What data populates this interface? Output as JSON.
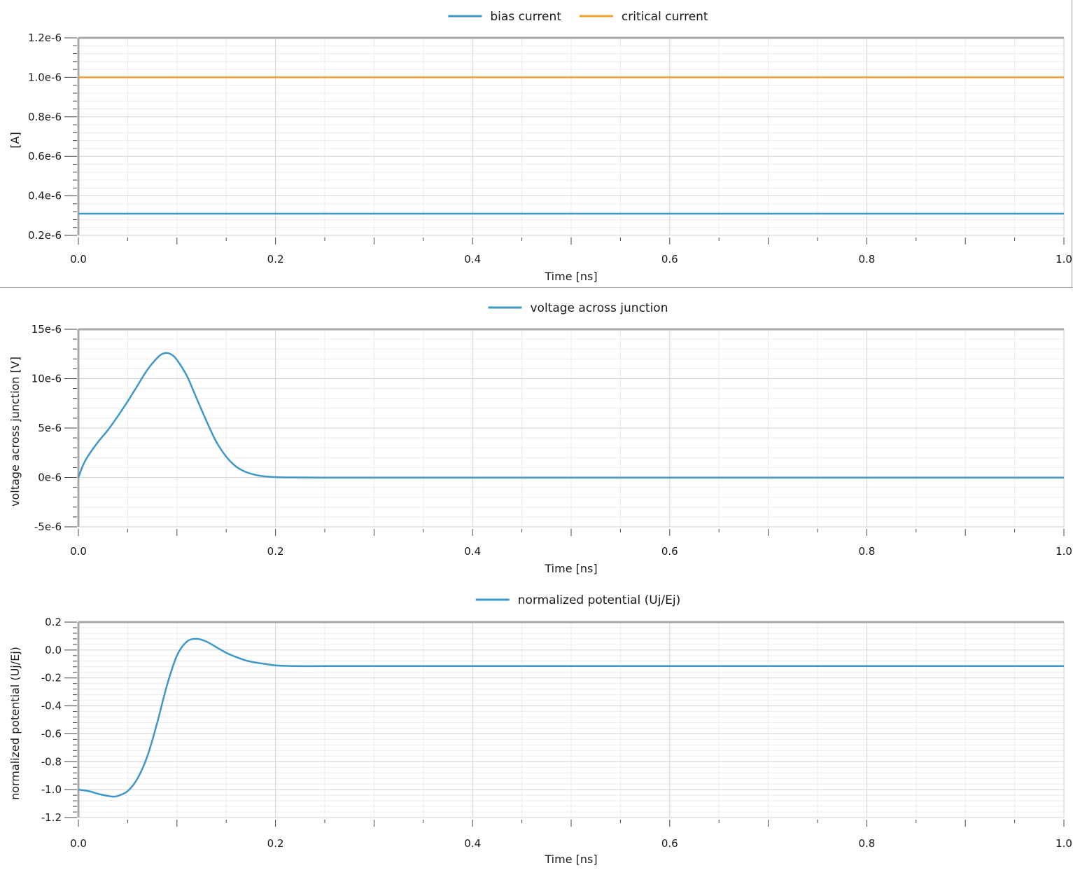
{
  "chart_data": [
    {
      "type": "line",
      "legend": "top-center",
      "xlabel": "Time [ns]",
      "ylabel": "[A]",
      "xlim": [
        0.0,
        1.0
      ],
      "ylim": [
        2e-07,
        1.2e-06
      ],
      "xticks": [
        "0.0",
        "0.2",
        "0.4",
        "0.6",
        "0.8",
        "1.0"
      ],
      "yticks": [
        "1.2e-6",
        "1.0e-6",
        "0.8e-6",
        "0.6e-6",
        "0.4e-6",
        "0.2e-6"
      ],
      "ytick_values": [
        1.2e-06,
        1e-06,
        8e-07,
        6e-07,
        4e-07,
        2e-07
      ],
      "grid": true,
      "series": [
        {
          "name": "bias current",
          "color": "#3f97c8",
          "x": [
            0.0,
            1.0
          ],
          "y": [
            3.1e-07,
            3.1e-07
          ]
        },
        {
          "name": "critical current",
          "color": "#f0a030",
          "x": [
            0.0,
            1.0
          ],
          "y": [
            1e-06,
            1e-06
          ]
        }
      ]
    },
    {
      "type": "line",
      "legend": "top-center",
      "xlabel": "Time [ns]",
      "ylabel": "voltage across junction [V]",
      "xlim": [
        0.0,
        1.0
      ],
      "ylim": [
        -5e-06,
        1.5e-05
      ],
      "xticks": [
        "0.0",
        "0.2",
        "0.4",
        "0.6",
        "0.8",
        "1.0"
      ],
      "yticks": [
        "15e-6",
        "10e-6",
        "5e-6",
        "0e-6",
        "-5e-6"
      ],
      "ytick_values": [
        1.5e-05,
        1e-05,
        5e-06,
        0,
        -5e-06
      ],
      "grid": true,
      "series": [
        {
          "name": "voltage across junction",
          "color": "#3f97c8",
          "x": [
            0.0,
            0.005,
            0.01,
            0.02,
            0.03,
            0.04,
            0.05,
            0.06,
            0.07,
            0.08,
            0.085,
            0.09,
            0.095,
            0.1,
            0.11,
            0.12,
            0.13,
            0.14,
            0.15,
            0.16,
            0.17,
            0.18,
            0.19,
            0.2,
            0.22,
            0.25,
            0.3,
            0.4,
            0.5,
            0.6,
            0.7,
            0.8,
            0.9,
            1.0
          ],
          "y": [
            0.0,
            1.3e-06,
            2.2e-06,
            3.6e-06,
            4.8e-06,
            6.2e-06,
            7.7e-06,
            9.3e-06,
            1.09e-05,
            1.21e-05,
            1.25e-05,
            1.26e-05,
            1.24e-05,
            1.19e-05,
            1.03e-05,
            8e-06,
            5.7e-06,
            3.6e-06,
            2.1e-06,
            1.1e-06,
            5.5e-07,
            2.5e-07,
            1e-07,
            3e-08,
            0.0,
            -2e-08,
            -2e-08,
            -2e-08,
            -2e-08,
            -2e-08,
            -2e-08,
            -2e-08,
            -2e-08,
            -2e-08
          ]
        }
      ]
    },
    {
      "type": "line",
      "legend": "top-center",
      "xlabel": "Time [ns]",
      "ylabel": "normalized potential (Uj/Ej)",
      "xlim": [
        0.0,
        1.0
      ],
      "ylim": [
        -1.2,
        0.2
      ],
      "xticks": [
        "0.0",
        "0.2",
        "0.4",
        "0.6",
        "0.8",
        "1.0"
      ],
      "yticks": [
        "0.2",
        "0.0",
        "-0.2",
        "-0.4",
        "-0.6",
        "-0.8",
        "-1.0",
        "-1.2"
      ],
      "ytick_values": [
        0.2,
        0.0,
        -0.2,
        -0.4,
        -0.6,
        -0.8,
        -1.0,
        -1.2
      ],
      "grid": true,
      "series": [
        {
          "name": "normalized potential (Uj/Ej)",
          "color": "#3f97c8",
          "x": [
            0.0,
            0.01,
            0.02,
            0.03,
            0.035,
            0.04,
            0.05,
            0.06,
            0.07,
            0.08,
            0.09,
            0.1,
            0.11,
            0.12,
            0.13,
            0.14,
            0.15,
            0.16,
            0.17,
            0.18,
            0.19,
            0.2,
            0.22,
            0.25,
            0.3,
            0.4,
            0.5,
            0.6,
            0.7,
            0.8,
            0.9,
            1.0
          ],
          "y": [
            -1.0,
            -1.01,
            -1.03,
            -1.045,
            -1.05,
            -1.045,
            -1.01,
            -0.92,
            -0.76,
            -0.52,
            -0.25,
            -0.04,
            0.06,
            0.08,
            0.06,
            0.02,
            -0.02,
            -0.05,
            -0.075,
            -0.09,
            -0.1,
            -0.11,
            -0.115,
            -0.115,
            -0.115,
            -0.115,
            -0.115,
            -0.115,
            -0.115,
            -0.115,
            -0.115,
            -0.115
          ]
        }
      ]
    }
  ]
}
